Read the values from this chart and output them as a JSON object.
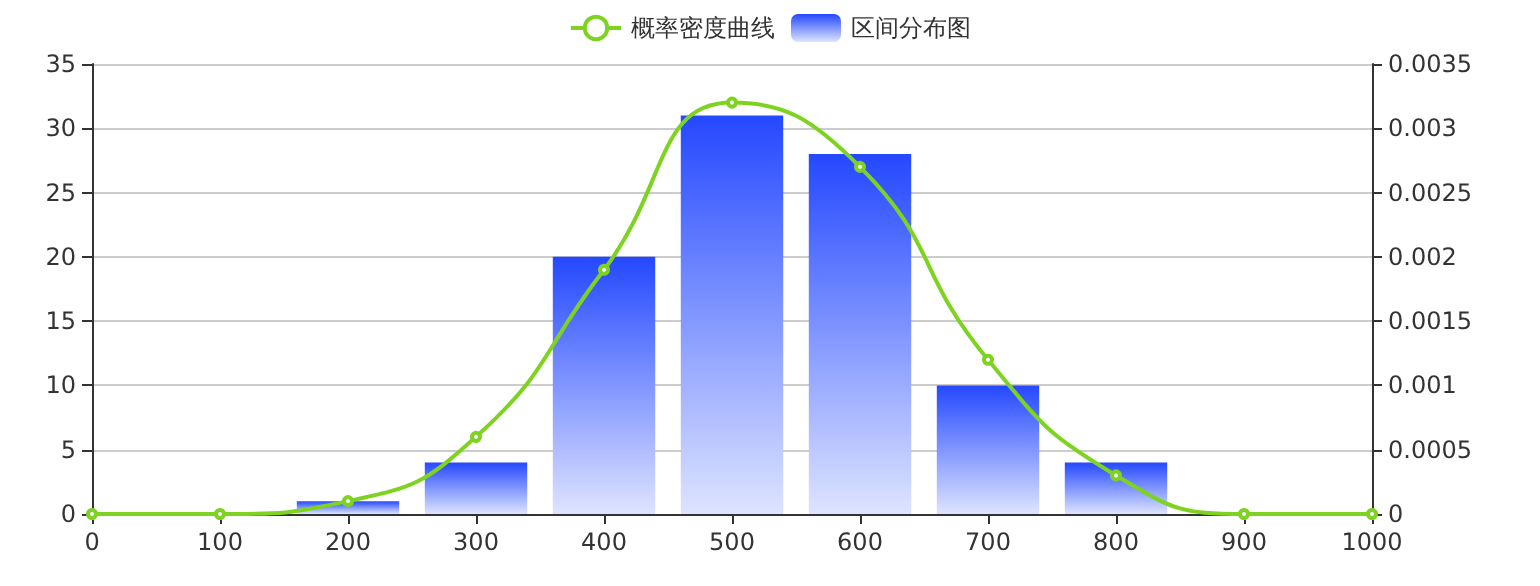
{
  "chart_data": {
    "type": "bar",
    "legend": "top",
    "grid": "y",
    "marker": "circle",
    "xlim": [
      0,
      1000
    ],
    "xticks": [
      0,
      100,
      200,
      300,
      400,
      500,
      600,
      700,
      800,
      900,
      1000
    ],
    "ylim": [
      0,
      35
    ],
    "yticks": [
      0,
      5,
      10,
      15,
      20,
      25,
      30,
      35
    ],
    "y2lim": [
      0,
      0.0035
    ],
    "y2ticks": [
      0,
      0.0005,
      0.001,
      0.0015,
      0.002,
      0.0025,
      0.003,
      0.0035
    ],
    "series": [
      {
        "type": "line",
        "name": "概率密度曲线",
        "color": "#7ed321",
        "axis": "y2",
        "x": [
          0,
          100,
          200,
          300,
          400,
          500,
          600,
          700,
          800,
          900,
          1000
        ],
        "values": [
          0,
          0,
          0.0001,
          0.0006,
          0.0019,
          0.0032,
          0.0027,
          0.0012,
          0.0003,
          0,
          0
        ]
      },
      {
        "name": "区间分布图",
        "color": "#2448ff",
        "x": [
          200,
          300,
          400,
          500,
          600,
          700,
          800
        ],
        "values": [
          1,
          4,
          20,
          31,
          28,
          10,
          4
        ]
      }
    ]
  }
}
